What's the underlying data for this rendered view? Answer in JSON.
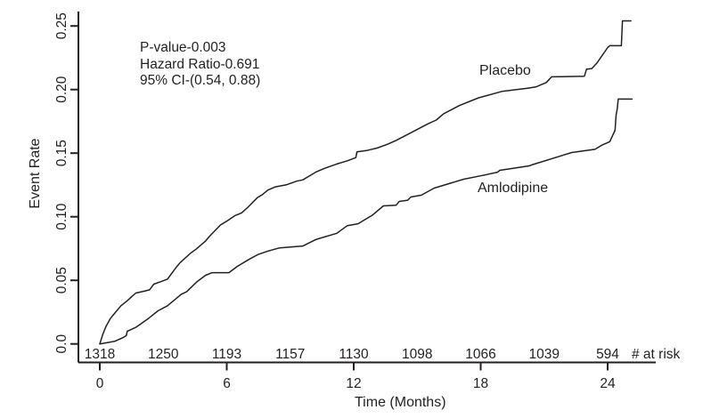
{
  "chart_data": {
    "type": "line",
    "title": "",
    "xlabel": "Time (Months)",
    "ylabel": "Event Rate",
    "xlim": [
      0,
      26.3
    ],
    "ylim": [
      0,
      0.26
    ],
    "grid": false,
    "legend_position": "inline-curve-labels",
    "line_color": "#231f20",
    "x_ticks": [
      0,
      6,
      12,
      18,
      24
    ],
    "y_ticks": [
      0,
      0.05,
      0.1,
      0.15,
      0.2,
      0.25
    ],
    "y_tick_labels": [
      "0.0",
      "0.05",
      "0.10",
      "0.15",
      "0.20",
      "0.25"
    ],
    "annotation": {
      "lines": [
        "P-value-0.003",
        "Hazard Ratio-0.691",
        "95% CI-(0.54, 0.88)"
      ]
    },
    "at_risk": {
      "label": "# at risk",
      "months": [
        0,
        3,
        6,
        9,
        12,
        15,
        18,
        21,
        24
      ],
      "counts": [
        "1318",
        "1250",
        "1193",
        "1157",
        "1130",
        "1098",
        "1066",
        "1039",
        "594"
      ]
    },
    "series": [
      {
        "name": "Placebo",
        "points": [
          [
            0,
            0
          ],
          [
            0.15,
            0.008
          ],
          [
            0.3,
            0.014
          ],
          [
            0.5,
            0.02
          ],
          [
            0.8,
            0.026
          ],
          [
            1.0,
            0.03
          ],
          [
            1.3,
            0.034
          ],
          [
            1.5,
            0.037
          ],
          [
            1.7,
            0.04
          ],
          [
            2.1,
            0.0415
          ],
          [
            2.35,
            0.0425
          ],
          [
            2.55,
            0.047
          ],
          [
            2.9,
            0.049
          ],
          [
            3.2,
            0.051
          ],
          [
            3.6,
            0.06
          ],
          [
            3.8,
            0.064
          ],
          [
            4.3,
            0.0715
          ],
          [
            4.55,
            0.0745
          ],
          [
            5.0,
            0.081
          ],
          [
            5.15,
            0.084
          ],
          [
            5.7,
            0.0935
          ],
          [
            6.0,
            0.0965
          ],
          [
            6.4,
            0.101
          ],
          [
            6.7,
            0.103
          ],
          [
            7.0,
            0.1075
          ],
          [
            7.45,
            0.115
          ],
          [
            7.65,
            0.117
          ],
          [
            7.95,
            0.121
          ],
          [
            8.3,
            0.1235
          ],
          [
            8.8,
            0.125
          ],
          [
            9.3,
            0.128
          ],
          [
            9.6,
            0.129
          ],
          [
            10.0,
            0.133
          ],
          [
            10.2,
            0.135
          ],
          [
            10.6,
            0.138
          ],
          [
            11.2,
            0.1415
          ],
          [
            11.7,
            0.144
          ],
          [
            12.1,
            0.1465
          ],
          [
            12.15,
            0.151
          ],
          [
            12.6,
            0.152
          ],
          [
            13.1,
            0.154
          ],
          [
            13.6,
            0.157
          ],
          [
            14.0,
            0.16
          ],
          [
            14.7,
            0.166
          ],
          [
            15.5,
            0.173
          ],
          [
            15.9,
            0.176
          ],
          [
            16.25,
            0.181
          ],
          [
            17.0,
            0.1875
          ],
          [
            17.9,
            0.1935
          ],
          [
            19.0,
            0.1985
          ],
          [
            20.2,
            0.201
          ],
          [
            20.6,
            0.202
          ],
          [
            21.1,
            0.2055
          ],
          [
            21.35,
            0.21
          ],
          [
            22.9,
            0.2105
          ],
          [
            23.0,
            0.216
          ],
          [
            23.25,
            0.2165
          ],
          [
            23.5,
            0.221
          ],
          [
            24.0,
            0.233
          ],
          [
            24.1,
            0.2345
          ],
          [
            24.65,
            0.2345
          ],
          [
            24.7,
            0.254
          ],
          [
            25.1,
            0.254
          ]
        ]
      },
      {
        "name": "Amlodipine",
        "points": [
          [
            0,
            0
          ],
          [
            0.7,
            0.002
          ],
          [
            1.1,
            0.005
          ],
          [
            1.25,
            0.0065
          ],
          [
            1.3,
            0.01
          ],
          [
            1.7,
            0.013
          ],
          [
            2.3,
            0.02
          ],
          [
            2.75,
            0.026
          ],
          [
            3.2,
            0.03
          ],
          [
            3.85,
            0.039
          ],
          [
            4.1,
            0.041
          ],
          [
            4.6,
            0.049
          ],
          [
            5.0,
            0.054
          ],
          [
            5.3,
            0.056
          ],
          [
            6.1,
            0.056
          ],
          [
            6.5,
            0.061
          ],
          [
            7.0,
            0.066
          ],
          [
            7.5,
            0.0705
          ],
          [
            7.95,
            0.073
          ],
          [
            8.5,
            0.0755
          ],
          [
            9.6,
            0.077
          ],
          [
            10.2,
            0.082
          ],
          [
            11.2,
            0.087
          ],
          [
            11.7,
            0.093
          ],
          [
            12.2,
            0.0945
          ],
          [
            12.9,
            0.1015
          ],
          [
            13.4,
            0.1085
          ],
          [
            14.0,
            0.109
          ],
          [
            14.15,
            0.112
          ],
          [
            14.55,
            0.113
          ],
          [
            14.7,
            0.1155
          ],
          [
            15.2,
            0.117
          ],
          [
            15.8,
            0.1225
          ],
          [
            16.5,
            0.126
          ],
          [
            17.2,
            0.1295
          ],
          [
            18.1,
            0.1325
          ],
          [
            18.8,
            0.135
          ],
          [
            18.9,
            0.1365
          ],
          [
            20.3,
            0.14
          ],
          [
            20.45,
            0.141
          ],
          [
            22.3,
            0.1505
          ],
          [
            23.4,
            0.153
          ],
          [
            23.75,
            0.1565
          ],
          [
            24.1,
            0.159
          ],
          [
            24.35,
            0.168
          ],
          [
            24.4,
            0.18
          ],
          [
            24.45,
            0.1845
          ],
          [
            24.5,
            0.1925
          ],
          [
            25.15,
            0.1925
          ]
        ]
      }
    ]
  }
}
